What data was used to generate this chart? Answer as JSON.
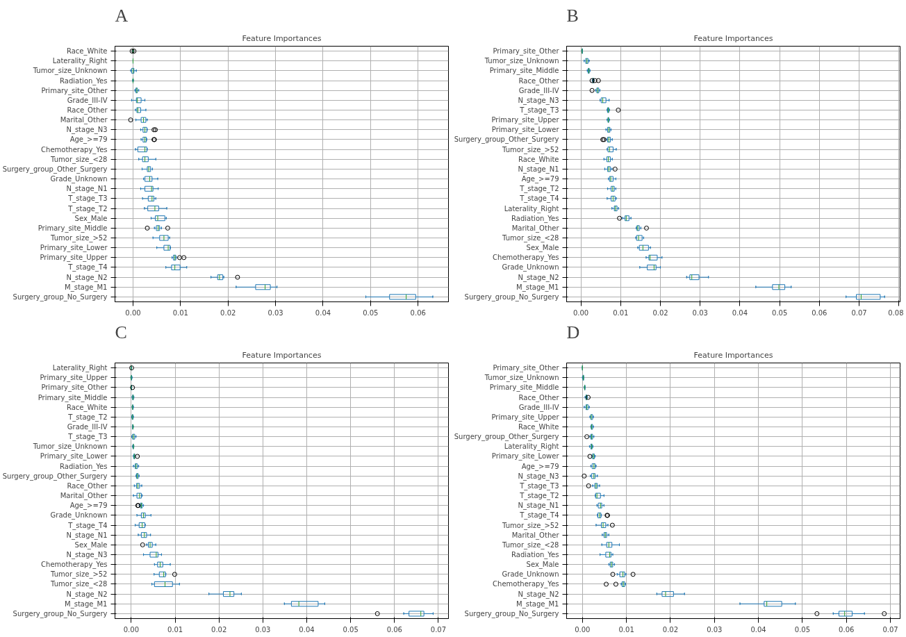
{
  "chart_data": [
    {
      "type": "box",
      "orientation": "horizontal",
      "title": "Feature Importances",
      "annotations": [
        "A"
      ],
      "grid": true,
      "categories": [
        "Race_White",
        "Laterality_Right",
        "Tumor_size_Unknown",
        "Radiation_Yes",
        "Primary_site_Other",
        "Grade_III-IV",
        "Race_Other",
        "Marital_Other",
        "N_stage_N3",
        "Age_>=79",
        "Chemotherapy_Yes",
        "Tumor_size_<28",
        "Surgery_group_Other_Surgery",
        "Grade_Unknown",
        "N_stage_N1",
        "T_stage_T3",
        "T_stage_T2",
        "Sex_Male",
        "Primary_site_Middle",
        "Tumor_size_>52",
        "Primary_site_Lower",
        "Primary_site_Upper",
        "T_stage_T4",
        "N_stage_N2",
        "M_stage_M1",
        "Surgery_group_No_Surgery"
      ],
      "xlim": [
        -0.0038,
        0.0664
      ],
      "xticks": [
        {
          "value": 0,
          "label": "0.00"
        },
        {
          "value": 0.01,
          "label": "0.01"
        },
        {
          "value": 0.02,
          "label": "0.02"
        },
        {
          "value": 0.03,
          "label": "0.03"
        },
        {
          "value": 0.04,
          "label": "0.04"
        },
        {
          "value": 0.05,
          "label": "0.05"
        },
        {
          "value": 0.06,
          "label": "0.06"
        }
      ],
      "series": [
        {
          "color": "#1f77b4",
          "boxes": [
            {
              "low": -0.0001,
              "q1": 0,
              "median": 0,
              "q3": 0,
              "high": 0.0001,
              "outliers": [
                -0.0002,
                0.0002
              ]
            },
            {
              "low": 0,
              "q1": 0,
              "median": 0,
              "q3": 0,
              "high": 0
            },
            {
              "low": -0.0005,
              "q1": -0.0003,
              "median": 0,
              "q3": 0.0002,
              "high": 0.0007
            },
            {
              "low": -0.0001,
              "q1": 0,
              "median": 0,
              "q3": 0,
              "high": 0.0001
            },
            {
              "low": 0.0004,
              "q1": 0.0006,
              "median": 0.0008,
              "q3": 0.0009,
              "high": 0.0012
            },
            {
              "low": -0.0003,
              "q1": 0.0007,
              "median": 0.0009,
              "q3": 0.0017,
              "high": 0.0025
            },
            {
              "low": 0.0005,
              "q1": 0.0008,
              "median": 0.001,
              "q3": 0.0016,
              "high": 0.0027
            },
            {
              "low": 0.0006,
              "q1": 0.0017,
              "median": 0.0022,
              "q3": 0.0027,
              "high": 0.003,
              "outliers": [
                -0.0005
              ]
            },
            {
              "low": 0.0016,
              "q1": 0.0021,
              "median": 0.0025,
              "q3": 0.0029,
              "high": 0.003,
              "outliers": [
                0.0044,
                0.0047
              ]
            },
            {
              "low": 0.0017,
              "q1": 0.0021,
              "median": 0.0025,
              "q3": 0.0028,
              "high": 0.0029,
              "outliers": [
                0.0044,
                0.0045
              ]
            },
            {
              "low": 0.0005,
              "q1": 0.001,
              "median": 0.0025,
              "q3": 0.0029,
              "high": 0.003
            },
            {
              "low": 0.0012,
              "q1": 0.002,
              "median": 0.0025,
              "q3": 0.0032,
              "high": 0.0048
            },
            {
              "low": 0.0019,
              "q1": 0.003,
              "median": 0.0033,
              "q3": 0.0037,
              "high": 0.0041
            },
            {
              "low": 0.0022,
              "q1": 0.0025,
              "median": 0.0035,
              "q3": 0.004,
              "high": 0.0052
            },
            {
              "low": 0.0016,
              "q1": 0.0025,
              "median": 0.0039,
              "q3": 0.0042,
              "high": 0.0053
            },
            {
              "low": 0.002,
              "q1": 0.0032,
              "median": 0.004,
              "q3": 0.0044,
              "high": 0.0048
            },
            {
              "low": 0.0024,
              "q1": 0.0031,
              "median": 0.0046,
              "q3": 0.0054,
              "high": 0.0071
            },
            {
              "low": 0.0038,
              "q1": 0.0047,
              "median": 0.0052,
              "q3": 0.0067,
              "high": 0.007
            },
            {
              "low": 0.0045,
              "q1": 0.0049,
              "median": 0.0053,
              "q3": 0.0056,
              "high": 0.006,
              "outliers": [
                0.003,
                0.0073
              ]
            },
            {
              "low": 0.0042,
              "q1": 0.0056,
              "median": 0.0065,
              "q3": 0.0074,
              "high": 0.0077
            },
            {
              "low": 0.005,
              "q1": 0.0065,
              "median": 0.0074,
              "q3": 0.0078,
              "high": 0.0079
            },
            {
              "low": 0.0082,
              "q1": 0.0085,
              "median": 0.0088,
              "q3": 0.009,
              "high": 0.0091,
              "outliers": [
                0.0098,
                0.0107
              ]
            },
            {
              "low": 0.0069,
              "q1": 0.0081,
              "median": 0.0088,
              "q3": 0.0099,
              "high": 0.0113
            },
            {
              "low": 0.0164,
              "q1": 0.0178,
              "median": 0.0182,
              "q3": 0.0189,
              "high": 0.0191,
              "outliers": [
                0.022
              ]
            },
            {
              "low": 0.0217,
              "q1": 0.0258,
              "median": 0.0278,
              "q3": 0.0289,
              "high": 0.0303
            },
            {
              "low": 0.049,
              "q1": 0.054,
              "median": 0.0575,
              "q3": 0.0595,
              "high": 0.0631
            }
          ]
        }
      ]
    },
    {
      "type": "box",
      "orientation": "horizontal",
      "title": "Feature Importances",
      "annotations": [
        "B"
      ],
      "grid": true,
      "categories": [
        "Primary_site_Other",
        "Tumor_size_Unknown",
        "Primary_site_Middle",
        "Race_Other",
        "Grade_III-IV",
        "N_stage_N3",
        "T_stage_T3",
        "Primary_site_Upper",
        "Primary_site_Lower",
        "Surgery_group_Other_Surgery",
        "Tumor_size_>52",
        "Race_White",
        "N_stage_N1",
        "Age_>=79",
        "T_stage_T2",
        "T_stage_T4",
        "Laterality_Right",
        "Radiation_Yes",
        "Marital_Other",
        "Tumor_size_<28",
        "Sex_Male",
        "Chemotherapy_Yes",
        "Grade_Unknown",
        "N_stage_N2",
        "M_stage_M1",
        "Surgery_group_No_Surgery"
      ],
      "xlim": [
        -0.0036,
        0.0803
      ],
      "xticks": [
        {
          "value": 0,
          "label": "0.00"
        },
        {
          "value": 0.01,
          "label": "0.01"
        },
        {
          "value": 0.02,
          "label": "0.02"
        },
        {
          "value": 0.03,
          "label": "0.03"
        },
        {
          "value": 0.04,
          "label": "0.04"
        },
        {
          "value": 0.05,
          "label": "0.05"
        },
        {
          "value": 0.06,
          "label": "0.06"
        },
        {
          "value": 0.07,
          "label": "0.07"
        },
        {
          "value": 0.08,
          "label": "0.08"
        }
      ],
      "series": [
        {
          "color": "#1f77b4",
          "boxes": [
            {
              "low": 0.0002,
              "q1": 0.0003,
              "median": 0.0003,
              "q3": 0.0004,
              "high": 0.0004
            },
            {
              "low": 0.0008,
              "q1": 0.0012,
              "median": 0.0015,
              "q3": 0.0018,
              "high": 0.0021
            },
            {
              "low": 0.0016,
              "q1": 0.0018,
              "median": 0.002,
              "q3": 0.0021,
              "high": 0.0023
            },
            {
              "low": 0.0029,
              "q1": 0.003,
              "median": 0.0031,
              "q3": 0.0032,
              "high": 0.0033,
              "outliers": [
                0.0028,
                0.0035,
                0.0044
              ]
            },
            {
              "low": 0.0037,
              "q1": 0.004,
              "median": 0.0042,
              "q3": 0.0045,
              "high": 0.0048,
              "outliers": [
                0.0028
              ]
            },
            {
              "low": 0.0048,
              "q1": 0.0051,
              "median": 0.0055,
              "q3": 0.0063,
              "high": 0.0071
            },
            {
              "low": 0.0066,
              "q1": 0.0067,
              "median": 0.0069,
              "q3": 0.007,
              "high": 0.0072,
              "outliers": [
                0.0094
              ]
            },
            {
              "low": 0.0066,
              "q1": 0.0068,
              "median": 0.0069,
              "q3": 0.007,
              "high": 0.0072
            },
            {
              "low": 0.0063,
              "q1": 0.0067,
              "median": 0.007,
              "q3": 0.0073,
              "high": 0.0076
            },
            {
              "low": 0.0064,
              "q1": 0.0067,
              "median": 0.007,
              "q3": 0.0074,
              "high": 0.0079,
              "outliers": [
                0.0055,
                0.0058
              ]
            },
            {
              "low": 0.0066,
              "q1": 0.0068,
              "median": 0.0072,
              "q3": 0.0081,
              "high": 0.0089
            },
            {
              "low": 0.0058,
              "q1": 0.0065,
              "median": 0.0069,
              "q3": 0.0074,
              "high": 0.0079
            },
            {
              "low": 0.006,
              "q1": 0.0067,
              "median": 0.007,
              "q3": 0.0074,
              "high": 0.0078,
              "outliers": [
                0.0086
              ]
            },
            {
              "low": 0.0069,
              "q1": 0.0072,
              "median": 0.0075,
              "q3": 0.0081,
              "high": 0.0088
            },
            {
              "low": 0.0067,
              "q1": 0.0076,
              "median": 0.008,
              "q3": 0.0084,
              "high": 0.0088
            },
            {
              "low": 0.0066,
              "q1": 0.0076,
              "median": 0.0081,
              "q3": 0.0086,
              "high": 0.0089
            },
            {
              "low": 0.0078,
              "q1": 0.0084,
              "median": 0.0087,
              "q3": 0.0091,
              "high": 0.0095
            },
            {
              "low": 0.0105,
              "q1": 0.0111,
              "median": 0.0114,
              "q3": 0.0121,
              "high": 0.0126,
              "outliers": [
                0.0097
              ]
            },
            {
              "low": 0.0139,
              "q1": 0.0141,
              "median": 0.0143,
              "q3": 0.0147,
              "high": 0.0151,
              "outliers": [
                0.0165
              ]
            },
            {
              "low": 0.0138,
              "q1": 0.014,
              "median": 0.0145,
              "q3": 0.0154,
              "high": 0.0158
            },
            {
              "low": 0.0143,
              "q1": 0.0147,
              "median": 0.0156,
              "q3": 0.017,
              "high": 0.0175
            },
            {
              "low": 0.0164,
              "q1": 0.0171,
              "median": 0.0174,
              "q3": 0.0192,
              "high": 0.0204
            },
            {
              "low": 0.0148,
              "q1": 0.0167,
              "median": 0.0184,
              "q3": 0.0189,
              "high": 0.02
            },
            {
              "low": 0.0266,
              "q1": 0.0274,
              "median": 0.0279,
              "q3": 0.0297,
              "high": 0.0321
            },
            {
              "low": 0.044,
              "q1": 0.0482,
              "median": 0.0498,
              "q3": 0.0513,
              "high": 0.0529
            },
            {
              "low": 0.0667,
              "q1": 0.0693,
              "median": 0.0705,
              "q3": 0.0753,
              "high": 0.0764
            }
          ]
        }
      ]
    },
    {
      "type": "box",
      "orientation": "horizontal",
      "title": "Feature Importances",
      "annotations": [
        "C"
      ],
      "grid": true,
      "categories": [
        "Laterality_Right",
        "Primary_site_Upper",
        "Primary_site_Other",
        "Primary_site_Middle",
        "Race_White",
        "T_stage_T2",
        "Grade_III-IV",
        "T_stage_T3",
        "Tumor_size_Unknown",
        "Primary_site_Lower",
        "Radiation_Yes",
        "Surgery_group_Other_Surgery",
        "Race_Other",
        "Marital_Other",
        "Age_>=79",
        "Grade_Unknown",
        "T_stage_T4",
        "N_stage_N1",
        "Sex_Male",
        "N_stage_N3",
        "Chemotherapy_Yes",
        "Tumor_size_>52",
        "Tumor_size_<28",
        "N_stage_N2",
        "M_stage_M1",
        "Surgery_group_No_Surgery"
      ],
      "xlim": [
        -0.0037,
        0.0723
      ],
      "xticks": [
        {
          "value": 0,
          "label": "0.00"
        },
        {
          "value": 0.01,
          "label": "0.01"
        },
        {
          "value": 0.02,
          "label": "0.02"
        },
        {
          "value": 0.03,
          "label": "0.03"
        },
        {
          "value": 0.04,
          "label": "0.04"
        },
        {
          "value": 0.05,
          "label": "0.05"
        },
        {
          "value": 0.06,
          "label": "0.06"
        },
        {
          "value": 0.07,
          "label": "0.07"
        }
      ],
      "series": [
        {
          "color": "#1f77b4",
          "boxes": [
            {
              "low": 0,
              "q1": 0,
              "median": 0,
              "q3": 0,
              "high": 0,
              "outliers": [
                0.0001
              ]
            },
            {
              "low": -0.0001,
              "q1": 0,
              "median": 0,
              "q3": 0.0001,
              "high": 0.0002
            },
            {
              "low": 0,
              "q1": 0,
              "median": 0,
              "q3": 0.0001,
              "high": 0.0001,
              "outliers": [
                0.0003
              ]
            },
            {
              "low": 0.0002,
              "q1": 0.0003,
              "median": 0.0004,
              "q3": 0.0005,
              "high": 0.0006
            },
            {
              "low": 0.0002,
              "q1": 0.0003,
              "median": 0.0003,
              "q3": 0.0004,
              "high": 0.0005
            },
            {
              "low": 0.0001,
              "q1": 0.0002,
              "median": 0.0003,
              "q3": 0.0004,
              "high": 0.0005
            },
            {
              "low": 0.0003,
              "q1": 0.0003,
              "median": 0.0004,
              "q3": 0.0004,
              "high": 0.0005
            },
            {
              "low": 0.0001,
              "q1": 0.0003,
              "median": 0.0005,
              "q3": 0.0008,
              "high": 0.0011
            },
            {
              "low": 0.0003,
              "q1": 0.0004,
              "median": 0.0005,
              "q3": 0.0005,
              "high": 0.0006
            },
            {
              "low": 0.0005,
              "q1": 0.0006,
              "median": 0.0007,
              "q3": 0.0008,
              "high": 0.0009,
              "outliers": [
                0.0014
              ]
            },
            {
              "low": 0.0005,
              "q1": 0.0009,
              "median": 0.0011,
              "q3": 0.0014,
              "high": 0.0017
            },
            {
              "low": 0.0011,
              "q1": 0.0012,
              "median": 0.0014,
              "q3": 0.0016,
              "high": 0.0018
            },
            {
              "low": 0.0007,
              "q1": 0.0012,
              "median": 0.0015,
              "q3": 0.0019,
              "high": 0.0024
            },
            {
              "low": 0.0005,
              "q1": 0.0013,
              "median": 0.0019,
              "q3": 0.0023,
              "high": 0.0025
            },
            {
              "low": 0.0019,
              "q1": 0.0021,
              "median": 0.0023,
              "q3": 0.0025,
              "high": 0.0028,
              "outliers": [
                0.0015,
                0.0016
              ]
            },
            {
              "low": 0.0013,
              "q1": 0.0023,
              "median": 0.0028,
              "q3": 0.0032,
              "high": 0.0045
            },
            {
              "low": 0.0009,
              "q1": 0.0018,
              "median": 0.0025,
              "q3": 0.0031,
              "high": 0.0032
            },
            {
              "low": 0.0016,
              "q1": 0.0023,
              "median": 0.003,
              "q3": 0.0035,
              "high": 0.0044
            },
            {
              "low": 0.0035,
              "q1": 0.0039,
              "median": 0.0043,
              "q3": 0.0048,
              "high": 0.0056,
              "outliers": [
                0.0026
              ]
            },
            {
              "low": 0.0028,
              "q1": 0.0043,
              "median": 0.0057,
              "q3": 0.0061,
              "high": 0.0069
            },
            {
              "low": 0.0053,
              "q1": 0.006,
              "median": 0.0066,
              "q3": 0.0072,
              "high": 0.0089
            },
            {
              "low": 0.0052,
              "q1": 0.0064,
              "median": 0.0074,
              "q3": 0.0078,
              "high": 0.0079,
              "outliers": [
                0.0099
              ]
            },
            {
              "low": 0.0047,
              "q1": 0.0053,
              "median": 0.0077,
              "q3": 0.0094,
              "high": 0.011
            },
            {
              "low": 0.0177,
              "q1": 0.021,
              "median": 0.0225,
              "q3": 0.0234,
              "high": 0.0251
            },
            {
              "low": 0.0349,
              "q1": 0.0365,
              "median": 0.0382,
              "q3": 0.0426,
              "high": 0.0441
            },
            {
              "low": 0.0621,
              "q1": 0.0633,
              "median": 0.066,
              "q3": 0.0667,
              "high": 0.0688,
              "outliers": [
                0.0561
              ]
            }
          ]
        }
      ]
    },
    {
      "type": "box",
      "orientation": "horizontal",
      "title": "Feature Importances",
      "annotations": [
        "D"
      ],
      "grid": true,
      "categories": [
        "Primary_site_Other",
        "Tumor_size_Unknown",
        "Primary_site_Middle",
        "Race_Other",
        "Grade_III-IV",
        "Primary_site_Upper",
        "Race_White",
        "Surgery_group_Other_Surgery",
        "Laterality_Right",
        "Primary_site_Lower",
        "Age_>=79",
        "N_stage_N3",
        "T_stage_T3",
        "T_stage_T2",
        "N_stage_N1",
        "T_stage_T4",
        "Tumor_size_>52",
        "Marital_Other",
        "Tumor_size_<28",
        "Radiation_Yes",
        "Sex_Male",
        "Grade_Unknown",
        "Chemotherapy_Yes",
        "N_stage_N2",
        "M_stage_M1",
        "Surgery_group_No_Surgery"
      ],
      "xlim": [
        -0.0036,
        0.0722
      ],
      "xticks": [
        {
          "value": 0,
          "label": "0.00"
        },
        {
          "value": 0.01,
          "label": "0.01"
        },
        {
          "value": 0.02,
          "label": "0.02"
        },
        {
          "value": 0.03,
          "label": "0.03"
        },
        {
          "value": 0.04,
          "label": "0.04"
        },
        {
          "value": 0.05,
          "label": "0.05"
        },
        {
          "value": 0.06,
          "label": "0.06"
        },
        {
          "value": 0.07,
          "label": "0.07"
        }
      ],
      "series": [
        {
          "color": "#1f77b4",
          "boxes": [
            {
              "low": 0,
              "q1": 0,
              "median": 0,
              "q3": 0,
              "high": 0
            },
            {
              "low": 0,
              "q1": 0.0001,
              "median": 0.0002,
              "q3": 0.0003,
              "high": 0.0003
            },
            {
              "low": 0.0004,
              "q1": 0.0005,
              "median": 0.0005,
              "q3": 0.0006,
              "high": 0.0006
            },
            {
              "low": 0.0006,
              "q1": 0.0008,
              "median": 0.0009,
              "q3": 0.001,
              "high": 0.0011,
              "outliers": [
                0.0013
              ]
            },
            {
              "low": 0.0004,
              "q1": 0.0008,
              "median": 0.001,
              "q3": 0.0013,
              "high": 0.0016
            },
            {
              "low": 0.0017,
              "q1": 0.0019,
              "median": 0.002,
              "q3": 0.0023,
              "high": 0.0025
            },
            {
              "low": 0.0019,
              "q1": 0.002,
              "median": 0.0021,
              "q3": 0.0023,
              "high": 0.0025
            },
            {
              "low": 0.0017,
              "q1": 0.0019,
              "median": 0.0021,
              "q3": 0.0023,
              "high": 0.0026,
              "outliers": [
                0.001
              ]
            },
            {
              "low": 0.0016,
              "q1": 0.0019,
              "median": 0.0021,
              "q3": 0.0022,
              "high": 0.0024
            },
            {
              "low": 0.0022,
              "q1": 0.0023,
              "median": 0.0025,
              "q3": 0.0027,
              "high": 0.0029,
              "outliers": [
                0.0017
              ]
            },
            {
              "low": 0.0019,
              "q1": 0.0022,
              "median": 0.0026,
              "q3": 0.0029,
              "high": 0.0031
            },
            {
              "low": 0.0018,
              "q1": 0.0021,
              "median": 0.0026,
              "q3": 0.0029,
              "high": 0.0034,
              "outliers": [
                0.0004
              ]
            },
            {
              "low": 0.0023,
              "q1": 0.0028,
              "median": 0.0031,
              "q3": 0.0034,
              "high": 0.0039,
              "outliers": [
                0.0014
              ]
            },
            {
              "low": 0.0029,
              "q1": 0.003,
              "median": 0.0033,
              "q3": 0.0041,
              "high": 0.0049
            },
            {
              "low": 0.0033,
              "q1": 0.0036,
              "median": 0.0041,
              "q3": 0.0044,
              "high": 0.0049
            },
            {
              "low": 0.0034,
              "q1": 0.0035,
              "median": 0.0039,
              "q3": 0.0042,
              "high": 0.0043,
              "outliers": [
                0.0056,
                0.0057
              ]
            },
            {
              "low": 0.0031,
              "q1": 0.0043,
              "median": 0.0047,
              "q3": 0.0053,
              "high": 0.0058,
              "outliers": [
                0.0068
              ]
            },
            {
              "low": 0.0045,
              "q1": 0.0049,
              "median": 0.0052,
              "q3": 0.0055,
              "high": 0.006
            },
            {
              "low": 0.0044,
              "q1": 0.0055,
              "median": 0.006,
              "q3": 0.0067,
              "high": 0.0084
            },
            {
              "low": 0.004,
              "q1": 0.0053,
              "median": 0.0062,
              "q3": 0.0065,
              "high": 0.0069
            },
            {
              "low": 0.006,
              "q1": 0.0063,
              "median": 0.0066,
              "q3": 0.0069,
              "high": 0.0073
            },
            {
              "low": 0.0079,
              "q1": 0.0085,
              "median": 0.0092,
              "q3": 0.0096,
              "high": 0.0099,
              "outliers": [
                0.0069,
                0.0115
              ]
            },
            {
              "low": 0.0088,
              "q1": 0.009,
              "median": 0.0093,
              "q3": 0.0096,
              "high": 0.0098,
              "outliers": [
                0.0054,
                0.0076
              ]
            },
            {
              "low": 0.0169,
              "q1": 0.0181,
              "median": 0.0189,
              "q3": 0.0207,
              "high": 0.0232
            },
            {
              "low": 0.0358,
              "q1": 0.0413,
              "median": 0.0419,
              "q3": 0.0453,
              "high": 0.0484
            },
            {
              "low": 0.057,
              "q1": 0.0583,
              "median": 0.0596,
              "q3": 0.0613,
              "high": 0.0641,
              "outliers": [
                0.0533,
                0.0686
              ]
            }
          ]
        }
      ]
    }
  ]
}
